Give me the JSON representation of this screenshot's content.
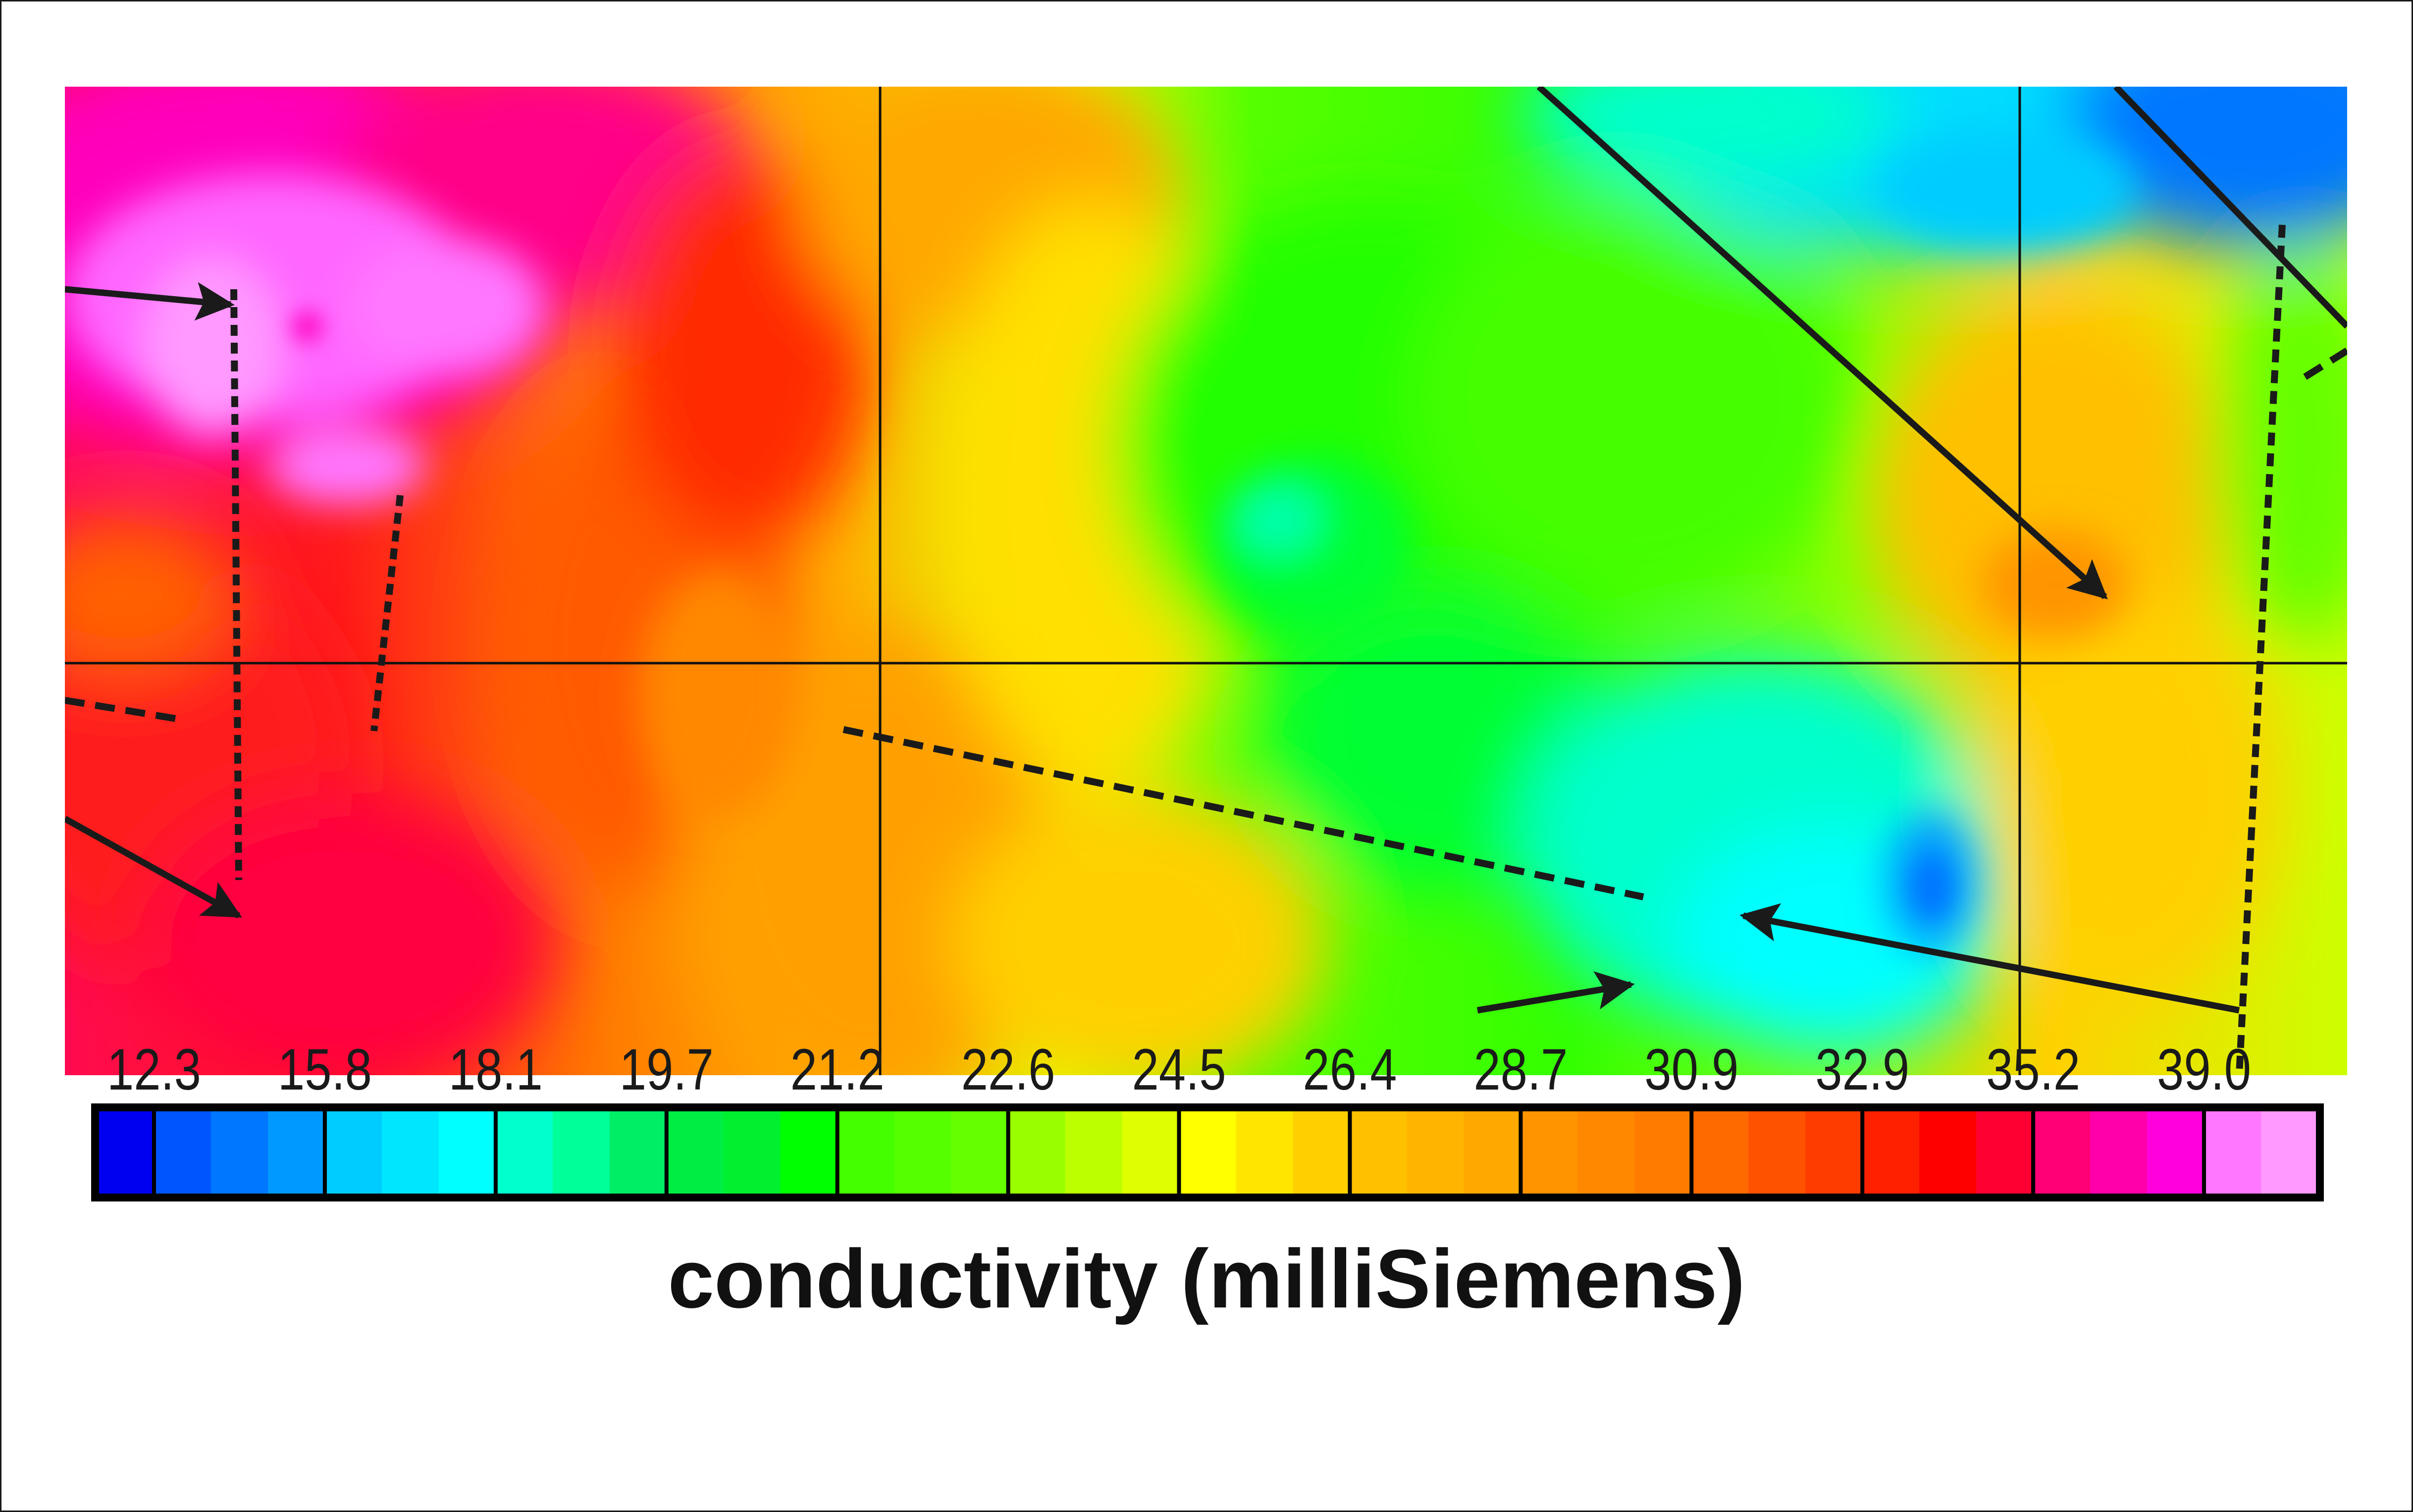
{
  "chart_data": {
    "type": "heatmap",
    "title": "conductivity (milliSiemens)",
    "xlabel": "",
    "ylabel": "",
    "colorbar": {
      "label": "conductivity (milliSiemens)",
      "tick_labels": [
        "12.3",
        "15.8",
        "18.1",
        "19.7",
        "21.2",
        "22.6",
        "24.5",
        "26.4",
        "28.7",
        "30.9",
        "32.9",
        "35.2",
        "39.0"
      ],
      "tick_values": [
        12.3,
        15.8,
        18.1,
        19.7,
        21.2,
        22.6,
        24.5,
        26.4,
        28.7,
        30.9,
        32.9,
        35.2,
        39.0
      ],
      "groups": [
        [
          "#0000f0"
        ],
        [
          "#0055ff",
          "#0077ff",
          "#0099ff"
        ],
        [
          "#00ccff",
          "#00e6ff",
          "#00ffff"
        ],
        [
          "#00ffcc",
          "#00ff99",
          "#00ee66"
        ],
        [
          "#00ee44",
          "#00f030",
          "#00ff00"
        ],
        [
          "#44ff00",
          "#55ff00",
          "#66ff00"
        ],
        [
          "#99ff00",
          "#bbff00",
          "#ddff00"
        ],
        [
          "#ffff00",
          "#ffe600",
          "#ffd000"
        ],
        [
          "#ffc000",
          "#ffb400",
          "#ffa800"
        ],
        [
          "#ff9400",
          "#ff8800",
          "#ff7c00"
        ],
        [
          "#ff6a00",
          "#ff5200",
          "#ff3c00"
        ],
        [
          "#ff2000",
          "#ff0000",
          "#ff0033"
        ],
        [
          "#ff0077",
          "#ff00aa",
          "#ff00dd"
        ],
        [
          "#ff77ff",
          "#ff99ff"
        ]
      ]
    },
    "grid": {
      "vertical_lines": 2,
      "horizontal_lines": 1
    },
    "annotations": {
      "solid_arrows": 6,
      "dashed_lines": 6,
      "description": "Survey map with contoured conductivity; high values (pink/red, ~35-39+ mS) on the left, low values (blue/cyan, ~12-18 mS) at the top right, green/yellow mid values in the center."
    },
    "regions": [
      {
        "area": "left",
        "approx_range": "32.9-39.0+",
        "colors": "pink/magenta/red"
      },
      {
        "area": "center-left",
        "approx_range": "26.4-30.9",
        "colors": "orange"
      },
      {
        "area": "center",
        "approx_range": "19.7-24.5",
        "colors": "green/yellow-green"
      },
      {
        "area": "top-right",
        "approx_range": "12.3-18.1",
        "colors": "blue/cyan"
      },
      {
        "area": "bottom-center-right",
        "approx_range": "15.8-19.7",
        "colors": "cyan/teal"
      },
      {
        "area": "right",
        "approx_range": "24.5-28.7",
        "colors": "yellow/orange"
      }
    ]
  }
}
